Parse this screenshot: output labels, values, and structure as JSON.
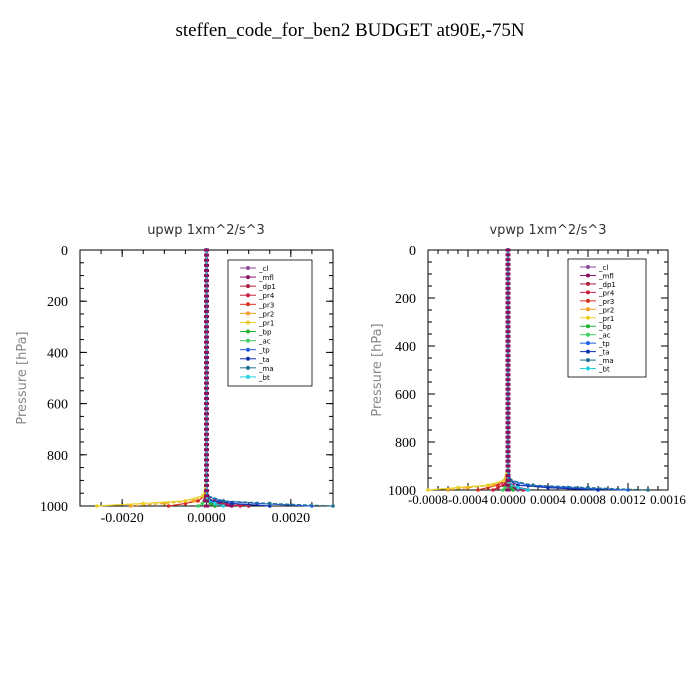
{
  "figure": {
    "title": "steffen_code_for_ben2  BUDGET at90E,-75N"
  },
  "colors": {
    "_cl": "#8a4a9a",
    "_mfl": "#8b1060",
    "_dp1": "#b0203a",
    "_pr4": "#cc2040",
    "_pr3": "#d83020",
    "_pr2": "#f0a020",
    "_pr1": "#e8d020",
    "_bp": "#20b030",
    "_ac": "#40d060",
    "_tp": "#2060e0",
    "_ta": "#1030b0",
    "_ma": "#207090",
    "_bt": "#20d0e0"
  },
  "chart_data": [
    {
      "type": "line",
      "title": "upwp   1xm^2/s^3",
      "xlabel": "",
      "ylabel": "Pressure  [hPa]",
      "xlim": [
        -0.003,
        0.003
      ],
      "ylim": [
        1000,
        0
      ],
      "x_ticks": [
        -0.002,
        0.0,
        0.002
      ],
      "x_tick_labels": [
        "-0.0020",
        "0.0000",
        "0.0020"
      ],
      "y_ticks": [
        0,
        200,
        400,
        600,
        800,
        1000
      ],
      "y_tick_labels": [
        "0",
        "200",
        "400",
        "600",
        "800",
        "1000"
      ],
      "legend_position": "top-right",
      "legend": [
        "_cl",
        "_mfl",
        "_dp1",
        "_pr4",
        "_pr3",
        "_pr2",
        "_pr1",
        "_bp",
        "_ac",
        "_tp",
        "_ta",
        "_ma",
        "_bt"
      ],
      "pressure": [
        0,
        100,
        200,
        300,
        400,
        500,
        600,
        700,
        800,
        900,
        960,
        980,
        990,
        1000
      ],
      "series": [
        {
          "name": "_cl",
          "values": [
            0,
            0,
            0,
            0,
            0,
            0,
            0,
            0,
            0,
            0,
            2e-05,
            5e-05,
            0.0001,
            0.0002
          ]
        },
        {
          "name": "_mfl",
          "values": [
            0,
            0,
            0,
            0,
            0,
            0,
            0,
            0,
            0,
            0,
            -2e-05,
            -5e-05,
            0.0002,
            0.0006
          ]
        },
        {
          "name": "_dp1",
          "values": [
            0,
            0,
            0,
            0,
            0,
            0,
            0,
            0,
            0,
            0,
            3e-05,
            0.0002,
            0.0006,
            0.001
          ]
        },
        {
          "name": "_pr4",
          "values": [
            0,
            0,
            0,
            0,
            0,
            0,
            0,
            0,
            0,
            0,
            2e-05,
            0.0001,
            0.0004,
            0.0008
          ]
        },
        {
          "name": "_pr3",
          "values": [
            0,
            0,
            0,
            0,
            0,
            0,
            0,
            0,
            0,
            0,
            -3e-05,
            -0.0002,
            -0.0005,
            -0.0009
          ]
        },
        {
          "name": "_pr2",
          "values": [
            0,
            0,
            0,
            0,
            0,
            0,
            0,
            0,
            0,
            0,
            -5e-05,
            -0.0003,
            -0.001,
            -0.0018
          ]
        },
        {
          "name": "_pr1",
          "values": [
            0,
            0,
            0,
            0,
            0,
            0,
            0,
            0,
            0,
            0,
            -8e-05,
            -0.0005,
            -0.0015,
            -0.0026
          ]
        },
        {
          "name": "_bp",
          "values": [
            0,
            0,
            0,
            0,
            0,
            0,
            0,
            0,
            0,
            0,
            0,
            0,
            0.0001,
            0.0002
          ]
        },
        {
          "name": "_ac",
          "values": [
            0,
            0,
            0,
            0,
            0,
            0,
            0,
            0,
            0,
            0,
            0,
            0,
            -0.0001,
            -0.0002
          ]
        },
        {
          "name": "_tp",
          "values": [
            0,
            0,
            0,
            0,
            0,
            0,
            0,
            0,
            0,
            0,
            2e-05,
            0.0003,
            0.0012,
            0.0025
          ]
        },
        {
          "name": "_ta",
          "values": [
            0,
            0,
            0,
            0,
            0,
            0,
            0,
            0,
            0,
            0,
            1e-05,
            0.0001,
            0.0006,
            0.0015
          ]
        },
        {
          "name": "_ma",
          "values": [
            0,
            0,
            0,
            0,
            0,
            0,
            0,
            0,
            0,
            0,
            3e-05,
            0.0004,
            0.0015,
            0.003
          ]
        },
        {
          "name": "_bt",
          "values": [
            0,
            0,
            0,
            0,
            0,
            0,
            0,
            0,
            0,
            0,
            0,
            5e-05,
            0.0002,
            0.0004
          ]
        }
      ]
    },
    {
      "type": "line",
      "title": "vpwp   1xm^2/s^3",
      "xlabel": "",
      "ylabel": "Pressure  [hPa]",
      "xlim": [
        -0.0008,
        0.0016
      ],
      "ylim": [
        1000,
        0
      ],
      "x_ticks": [
        -0.0008,
        -0.0004,
        0.0,
        0.0004,
        0.0008,
        0.0012,
        0.0016
      ],
      "x_tick_labels": [
        "-0.0008",
        "-0.0004",
        "0.0000",
        "0.0004",
        "0.0008",
        "0.0012",
        "0.0016"
      ],
      "y_ticks": [
        0,
        200,
        400,
        600,
        800,
        1000
      ],
      "y_tick_labels": [
        "0",
        "200",
        "400",
        "600",
        "800",
        "1000"
      ],
      "legend_position": "top-right",
      "legend": [
        "_cl",
        "_mfl",
        "_dp1",
        "_pr4",
        "_pr3",
        "_pr2",
        "_pr1",
        "_bp",
        "_ac",
        "_tp",
        "_ta",
        "_ma",
        "_bt"
      ],
      "pressure": [
        0,
        100,
        200,
        300,
        400,
        500,
        600,
        700,
        800,
        900,
        960,
        980,
        990,
        1000
      ],
      "series": [
        {
          "name": "_cl",
          "values": [
            0,
            0,
            0,
            0,
            0,
            0,
            0,
            0,
            0,
            0,
            1e-05,
            3e-05,
            5e-05,
            0.0001
          ]
        },
        {
          "name": "_mfl",
          "values": [
            0,
            0,
            0,
            0,
            0,
            0,
            0,
            0,
            0,
            0,
            -1e-05,
            -4e-05,
            8e-05,
            0.0002
          ]
        },
        {
          "name": "_dp1",
          "values": [
            0,
            0,
            0,
            0,
            0,
            0,
            0,
            0,
            0,
            0,
            1e-05,
            5e-05,
            0.0001,
            0.00015
          ]
        },
        {
          "name": "_pr4",
          "values": [
            0,
            0,
            0,
            0,
            0,
            0,
            0,
            0,
            0,
            0,
            -1e-05,
            -5e-05,
            -0.0001,
            -0.00015
          ]
        },
        {
          "name": "_pr3",
          "values": [
            0,
            0,
            0,
            0,
            0,
            0,
            0,
            0,
            0,
            0,
            -2e-05,
            -0.0001,
            -0.0002,
            -0.0003
          ]
        },
        {
          "name": "_pr2",
          "values": [
            0,
            0,
            0,
            0,
            0,
            0,
            0,
            0,
            0,
            0,
            -3e-05,
            -0.00015,
            -0.0004,
            -0.0006
          ]
        },
        {
          "name": "_pr1",
          "values": [
            0,
            0,
            0,
            0,
            0,
            0,
            0,
            0,
            0,
            0,
            -4e-05,
            -0.0002,
            -0.0005,
            -0.0008
          ]
        },
        {
          "name": "_bp",
          "values": [
            0,
            0,
            0,
            0,
            0,
            0,
            0,
            0,
            0,
            0,
            0,
            0,
            3e-05,
            5e-05
          ]
        },
        {
          "name": "_ac",
          "values": [
            0,
            0,
            0,
            0,
            0,
            0,
            0,
            0,
            0,
            0,
            0,
            0,
            -3e-05,
            -5e-05
          ]
        },
        {
          "name": "_tp",
          "values": [
            0,
            0,
            0,
            0,
            0,
            0,
            0,
            0,
            0,
            0,
            2e-05,
            0.0002,
            0.0006,
            0.0012
          ]
        },
        {
          "name": "_ta",
          "values": [
            0,
            0,
            0,
            0,
            0,
            0,
            0,
            0,
            0,
            0,
            1e-05,
            0.0001,
            0.0004,
            0.0009
          ]
        },
        {
          "name": "_ma",
          "values": [
            0,
            0,
            0,
            0,
            0,
            0,
            0,
            0,
            0,
            0,
            3e-05,
            0.00025,
            0.0008,
            0.0014
          ]
        },
        {
          "name": "_bt",
          "values": [
            0,
            0,
            0,
            0,
            0,
            0,
            0,
            0,
            0,
            0,
            0,
            3e-05,
            0.0001,
            0.0002
          ]
        }
      ]
    }
  ]
}
